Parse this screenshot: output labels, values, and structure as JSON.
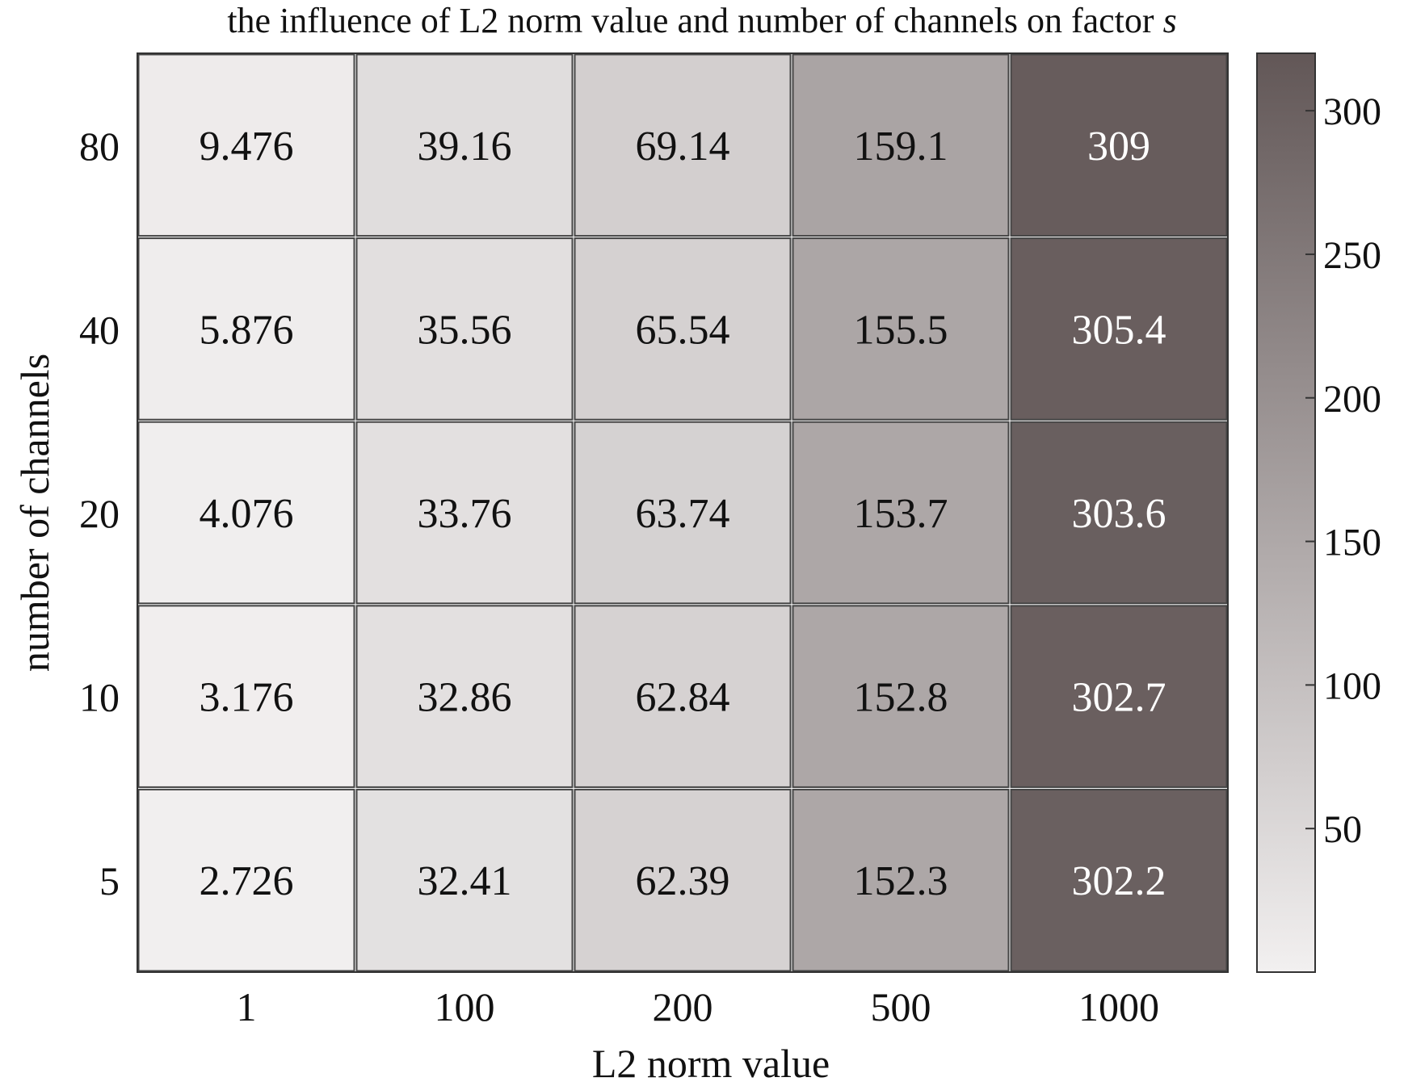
{
  "chart_data": {
    "type": "heatmap",
    "title_prefix": "the influence of L2 norm value and number of channels on factor ",
    "title_var": "s",
    "xlabel": "L2 norm value",
    "ylabel": "number of channels",
    "x_categories": [
      "1",
      "100",
      "200",
      "500",
      "1000"
    ],
    "y_categories": [
      "80",
      "40",
      "20",
      "10",
      "5"
    ],
    "values": [
      [
        "9.476",
        "39.16",
        "69.14",
        "159.1",
        "309"
      ],
      [
        "5.876",
        "35.56",
        "65.54",
        "155.5",
        "305.4"
      ],
      [
        "4.076",
        "33.76",
        "63.74",
        "153.7",
        "303.6"
      ],
      [
        "3.176",
        "32.86",
        "62.84",
        "152.8",
        "302.7"
      ],
      [
        "2.726",
        "32.41",
        "62.39",
        "152.3",
        "302.2"
      ]
    ],
    "colorbar": {
      "min": 0,
      "max": 320,
      "ticks": [
        "50",
        "100",
        "150",
        "200",
        "250",
        "300"
      ],
      "low_color": "#f2f0f0",
      "high_color": "#625757"
    }
  }
}
